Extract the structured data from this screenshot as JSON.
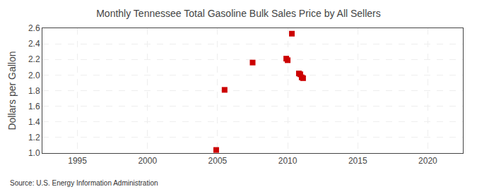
{
  "chart_data": {
    "type": "scatter",
    "title": "Monthly Tennessee Total Gasoline Bulk Sales Price by All Sellers",
    "ylabel": "Dollars per Gallon",
    "annotations": [
      "Source: U.S. Energy Information Administration"
    ],
    "x": [
      2004.9,
      2005.5,
      2007.5,
      2009.9,
      2010.0,
      2010.3,
      2010.8,
      2010.9,
      2011.0,
      2011.1
    ],
    "values": [
      1.04,
      1.81,
      2.16,
      2.21,
      2.19,
      2.53,
      2.02,
      2.01,
      1.97,
      1.96
    ],
    "color": "#cc0000",
    "marker": "square",
    "xlim": [
      1992.5,
      2022.5
    ],
    "ylim": [
      1.0,
      2.6
    ],
    "xticks": [
      1995,
      2000,
      2005,
      2010,
      2015,
      2020
    ],
    "yticks": [
      {
        "value": 1.0,
        "label": "1.0"
      },
      1.2,
      1.4,
      1.6,
      1.8,
      {
        "value": 2.0,
        "label": "2.0"
      },
      2.2,
      2.4,
      2.6
    ],
    "grid": true
  }
}
